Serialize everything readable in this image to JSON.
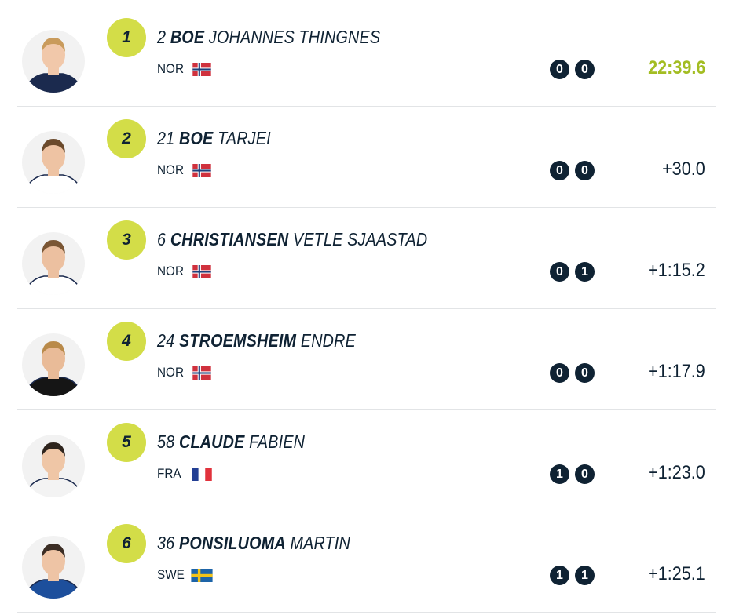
{
  "results": [
    {
      "rank": 1,
      "bib": 2,
      "surname": "BOE",
      "first_name": "JOHANNES THINGNES",
      "nation": "NOR",
      "shooting": [
        0,
        0
      ],
      "time": "22:39.6"
    },
    {
      "rank": 2,
      "bib": 21,
      "surname": "BOE",
      "first_name": "TARJEI",
      "nation": "NOR",
      "shooting": [
        0,
        0
      ],
      "time": "+30.0"
    },
    {
      "rank": 3,
      "bib": 6,
      "surname": "CHRISTIANSEN",
      "first_name": "VETLE SJAASTAD",
      "nation": "NOR",
      "shooting": [
        0,
        1
      ],
      "time": "+1:15.2"
    },
    {
      "rank": 4,
      "bib": 24,
      "surname": "STROEMSHEIM",
      "first_name": "ENDRE",
      "nation": "NOR",
      "shooting": [
        0,
        0
      ],
      "time": "+1:17.9"
    },
    {
      "rank": 5,
      "bib": 58,
      "surname": "CLAUDE",
      "first_name": "FABIEN",
      "nation": "FRA",
      "shooting": [
        1,
        0
      ],
      "time": "+1:23.0"
    },
    {
      "rank": 6,
      "bib": 36,
      "surname": "PONSILUOMA",
      "first_name": "MARTIN",
      "nation": "SWE",
      "shooting": [
        1,
        1
      ],
      "time": "+1:25.1"
    }
  ]
}
